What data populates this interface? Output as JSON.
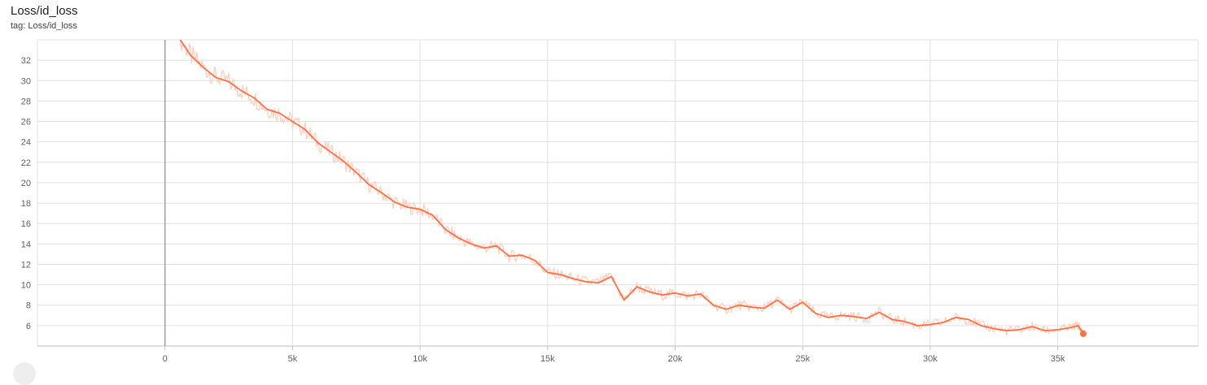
{
  "card": {
    "title": "Loss/id_loss",
    "tag_text": "tag: Loss/id_loss"
  },
  "colors": {
    "smoothed": "#ff7043",
    "raw": "#ffccbc",
    "grid": "#e0e0e0",
    "zero_axis": "#9e9e9e"
  },
  "chart_data": {
    "type": "line",
    "title": "Loss/id_loss",
    "xlabel": "",
    "ylabel": "",
    "xlim": [
      -5000,
      40500
    ],
    "ylim": [
      4.0,
      34.0
    ],
    "x_ticks": [
      0,
      5000,
      10000,
      15000,
      20000,
      25000,
      30000,
      35000
    ],
    "x_tick_labels": [
      "0",
      "5k",
      "10k",
      "15k",
      "20k",
      "25k",
      "30k",
      "35k"
    ],
    "y_ticks": [
      6,
      8,
      10,
      12,
      14,
      16,
      18,
      20,
      22,
      24,
      26,
      28,
      30,
      32
    ],
    "y_tick_labels": [
      "6",
      "8",
      "10",
      "12",
      "14",
      "16",
      "18",
      "20",
      "22",
      "24",
      "26",
      "28",
      "30",
      "32"
    ],
    "grid": true,
    "series": [
      {
        "x": [
          600,
          1000,
          1500,
          2000,
          2500,
          3000,
          3500,
          4000,
          4500,
          5000,
          5500,
          6000,
          6500,
          7000,
          7500,
          8000,
          8500,
          9000,
          9500,
          10000,
          10500,
          11000,
          11500,
          12000,
          12500,
          13000,
          13500,
          14000,
          14500,
          15000,
          15500,
          16000,
          16500,
          17000,
          17500,
          18000,
          18500,
          19000,
          19500,
          20000,
          20500,
          21000,
          21500,
          22000,
          22500,
          23000,
          23500,
          24000,
          24500,
          25000,
          25500,
          26000,
          26500,
          27000,
          27500,
          28000,
          28500,
          29000,
          29500,
          30000,
          30500,
          31000,
          31500,
          32000,
          32500,
          33000,
          33500,
          34000,
          34500,
          35000,
          35500,
          35800,
          36000
        ],
        "y": [
          34.0,
          32.5,
          31.3,
          30.3,
          29.9,
          29.0,
          28.3,
          27.2,
          26.8,
          26.0,
          25.2,
          23.9,
          23.0,
          22.1,
          21.0,
          19.8,
          19.0,
          18.1,
          17.6,
          17.4,
          16.8,
          15.4,
          14.6,
          14.0,
          13.6,
          13.8,
          12.8,
          12.9,
          12.4,
          11.2,
          11.0,
          10.6,
          10.3,
          10.2,
          10.8,
          8.5,
          9.8,
          9.3,
          9.0,
          9.2,
          8.9,
          9.1,
          8.0,
          7.6,
          8.0,
          7.8,
          7.7,
          8.5,
          7.6,
          8.3,
          7.2,
          6.8,
          7.0,
          6.9,
          6.7,
          7.3,
          6.6,
          6.4,
          6.0,
          6.1,
          6.3,
          6.8,
          6.6,
          6.0,
          5.7,
          5.5,
          5.6,
          5.9,
          5.5,
          5.6,
          5.8,
          6.0,
          5.2
        ]
      }
    ]
  }
}
